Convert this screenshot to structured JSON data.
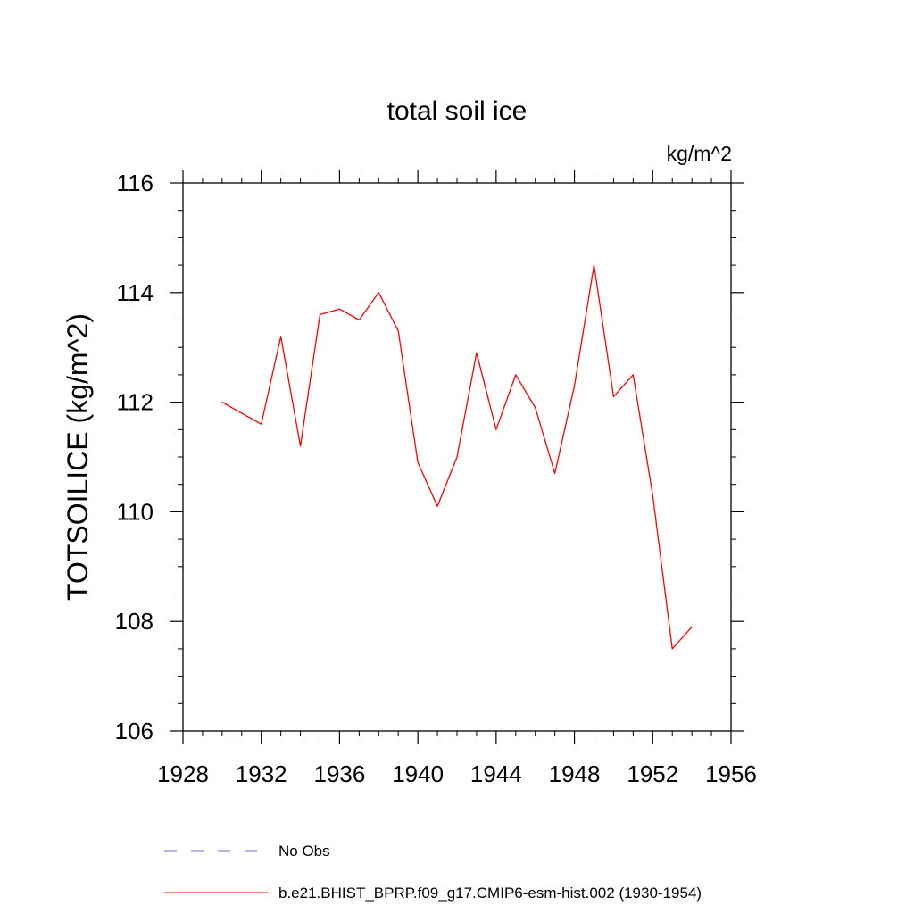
{
  "chart_data": {
    "type": "line",
    "title": "total soil ice",
    "units": "kg/m^2",
    "ylabel": "TOTSOILICE  (kg/m^2)",
    "xlabel": "",
    "xlim": [
      1928,
      1956
    ],
    "ylim": [
      106,
      116
    ],
    "x_ticks": [
      1928,
      1932,
      1936,
      1940,
      1944,
      1948,
      1952,
      1956
    ],
    "y_ticks": [
      106,
      108,
      110,
      112,
      114,
      116
    ],
    "grid": false,
    "legend_position": "bottom",
    "series": [
      {
        "name": "No Obs",
        "color": "#6a6ac8",
        "line_style": "dashed",
        "x": [],
        "y": []
      },
      {
        "name": "b.e21.BHIST_BPRP.f09_g17.CMIP6-esm-hist.002 (1930-1954)",
        "color": "#ff0000",
        "line_style": "solid",
        "x": [
          1930,
          1931,
          1932,
          1933,
          1934,
          1935,
          1936,
          1937,
          1938,
          1939,
          1940,
          1941,
          1942,
          1943,
          1944,
          1945,
          1946,
          1947,
          1948,
          1949,
          1950,
          1951,
          1952,
          1953,
          1954
        ],
        "y": [
          112.0,
          111.8,
          111.6,
          113.2,
          111.2,
          113.6,
          113.7,
          113.5,
          114.0,
          113.3,
          110.9,
          110.1,
          111.0,
          112.9,
          111.5,
          112.5,
          111.9,
          110.7,
          112.3,
          114.5,
          112.1,
          112.5,
          110.3,
          107.5,
          107.9
        ]
      }
    ]
  }
}
